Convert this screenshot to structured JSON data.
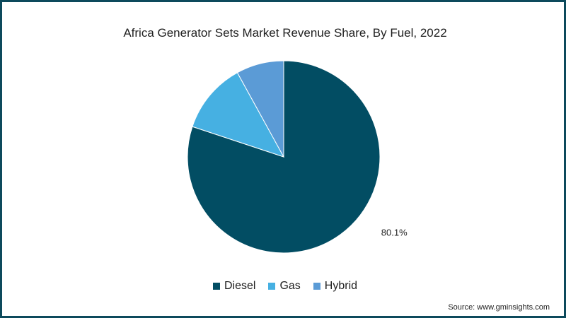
{
  "chart_data": {
    "type": "pie",
    "title": "Africa Generator Sets Market Revenue Share, By Fuel, 2022",
    "categories": [
      "Diesel",
      "Gas",
      "Hybrid"
    ],
    "values": [
      80.1,
      11.9,
      8.0
    ],
    "colors": [
      "#024d63",
      "#46b0e2",
      "#5b9bd6"
    ],
    "data_labels": [
      "80.1%",
      "",
      ""
    ],
    "legend_position": "bottom"
  },
  "source": "Source: www.gminsights.com"
}
